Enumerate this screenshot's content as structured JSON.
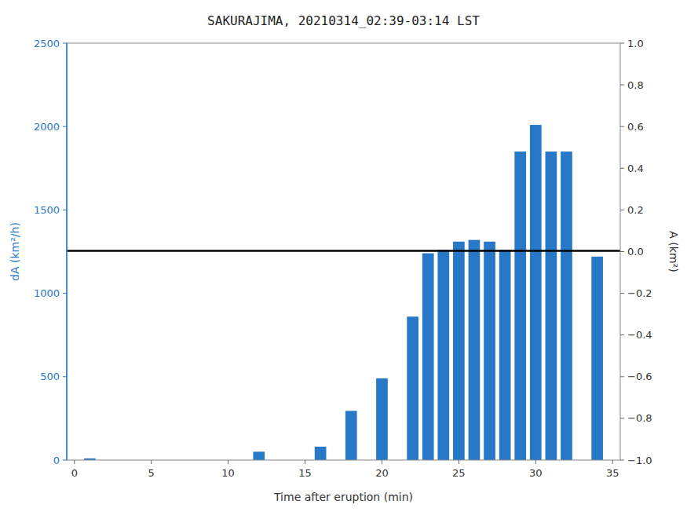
{
  "chart_data": {
    "type": "bar",
    "title": "SAKURAJIMA, 20210314_02:39-03:14 LST",
    "x_label": "Time after eruption (min)",
    "y_label": "dA (km²/h)",
    "y2_label": "A (km²)",
    "x": [
      1,
      12,
      16,
      18,
      20,
      22,
      23,
      24,
      25,
      26,
      27,
      28,
      29,
      30,
      31,
      32,
      34
    ],
    "values": [
      10,
      50,
      80,
      295,
      490,
      860,
      1240,
      1260,
      1310,
      1320,
      1310,
      1260,
      1850,
      2010,
      1850,
      1850,
      1220
    ],
    "color": "#2878c8",
    "reference_lines": [
      {
        "y": 1255,
        "color": "black"
      }
    ],
    "xlim": [
      -0.5,
      35.5
    ],
    "xticks": [
      0,
      5,
      10,
      15,
      20,
      25,
      30,
      35
    ],
    "ylim": [
      0,
      2500
    ],
    "yticks": [
      0,
      500,
      1000,
      1500,
      2000,
      2500
    ],
    "y2lim": [
      -1,
      1
    ],
    "y2ticks": [
      {
        "value": -1.0,
        "label": "−1.0"
      },
      {
        "value": -0.8,
        "label": "−0.8"
      },
      {
        "value": -0.6,
        "label": "−0.6"
      },
      {
        "value": -0.4,
        "label": "−0.4"
      },
      {
        "value": -0.2,
        "label": "−0.2"
      },
      {
        "value": 0.0,
        "label": "0.0"
      },
      {
        "value": 0.2,
        "label": "0.2"
      },
      {
        "value": 0.4,
        "label": "0.4"
      },
      {
        "value": 0.6,
        "label": "0.6"
      },
      {
        "value": 0.8,
        "label": "0.8"
      },
      {
        "value": 1.0,
        "label": "1.0"
      }
    ],
    "grid": false
  }
}
